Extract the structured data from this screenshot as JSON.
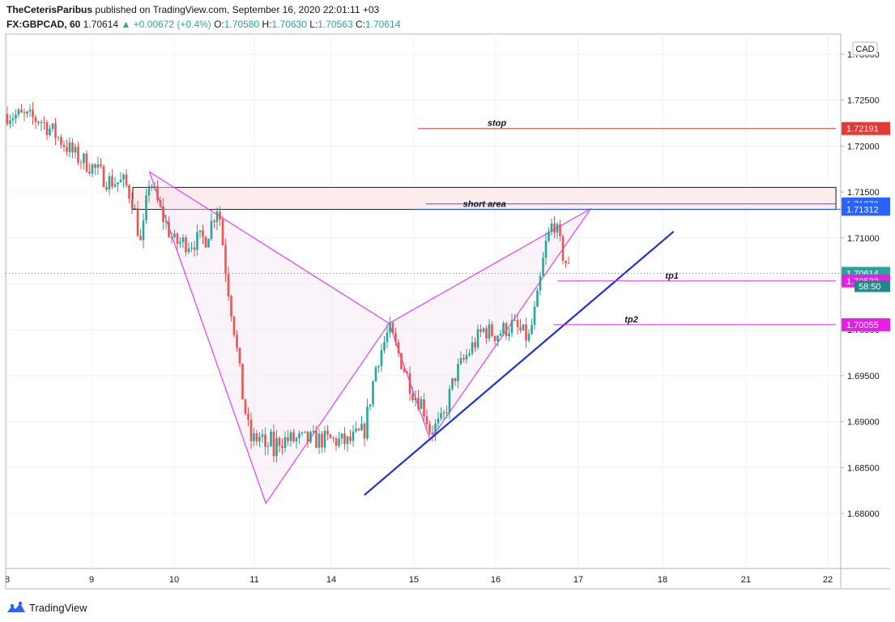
{
  "header": {
    "author": "TheCeterisParibus",
    "published": "published on TradingView.com, September 16, 2020 22:01:11 +03",
    "symbol": "FX:GBPCAD, 60",
    "last": "1.70614",
    "change": "+0.00672 (+0.4%)",
    "o_label": "O:",
    "o": "1.70580",
    "h_label": "H:",
    "h": "1.70630",
    "l_label": "L:",
    "l": "1.70563",
    "c_label": "C:",
    "c": "1.70614"
  },
  "footer": {
    "brand": "TradingView"
  },
  "colors": {
    "up": "#26a69a",
    "down": "#ef5350",
    "grid": "#eef0f3",
    "axis": "#b2b5be",
    "pattern": "#e040fb",
    "trend": "#1e2fe0",
    "stop": "#e53935",
    "zone_border": "#131722",
    "zone_fill": "#fdecec",
    "blue_label": "#2962ff",
    "magenta_label": "#e91ee6",
    "price_label": "#26a69a"
  },
  "chart_data": {
    "type": "candlestick",
    "currency": "CAD",
    "x_ticks": [
      "8",
      "9",
      "10",
      "11",
      "14",
      "15",
      "16",
      "17",
      "18",
      "21",
      "22"
    ],
    "y_ticks": [
      "1.73000",
      "1.72500",
      "1.72000",
      "1.71500",
      "1.71000",
      "1.70500",
      "1.70000",
      "1.69500",
      "1.69000",
      "1.68500",
      "1.68000"
    ],
    "ylim": [
      1.674,
      1.7322
    ],
    "current_price": 1.70614,
    "countdown": "58:50",
    "price_labels": [
      {
        "value": 1.72191,
        "text": "1.72191",
        "color": "#e53935"
      },
      {
        "value": 1.7137,
        "text": "1.71370",
        "color": "#2962ff"
      },
      {
        "value": 1.71312,
        "text": "1.71312",
        "color": "#2962ff"
      },
      {
        "value": 1.70614,
        "text": "1.70614",
        "color": "#26a69a"
      },
      {
        "value": 1.70532,
        "text": "1.70532",
        "color": "#e91ee6"
      },
      {
        "value": 1.70055,
        "text": "1.70055",
        "color": "#e91ee6"
      }
    ],
    "annotations": [
      {
        "text": "stop",
        "x": 15.05,
        "price": 1.72191,
        "x_end": 22.1,
        "label_x": 15.9,
        "color": "#e53935"
      },
      {
        "text": "short area",
        "x": 15.0,
        "price": 1.71312,
        "label_x": 15.6,
        "color": "#2962ff"
      },
      {
        "text": "tp1",
        "x": 16.75,
        "price": 1.70532,
        "x_end": 22.1,
        "label_x": 18.1,
        "color": "#e91ee6"
      },
      {
        "text": "tp2",
        "x": 16.7,
        "price": 1.70055,
        "x_end": 22.1,
        "label_x": 17.55,
        "color": "#e91ee6"
      }
    ],
    "short_zone": {
      "x_start": 9.5,
      "x_end": 22.1,
      "top": 1.7155,
      "bottom": 1.7131
    },
    "blue_line_upper": {
      "x_start": 15.15,
      "x_end": 22.1,
      "price": 1.7137
    },
    "trendline": [
      {
        "x": 14.4,
        "price": 1.682
      },
      {
        "x": 18.4,
        "price": 1.7107
      }
    ],
    "pattern_points": [
      {
        "x": 9.7,
        "price": 1.7172
      },
      {
        "x": 11.45,
        "price": 1.6811
      },
      {
        "x": 14.7,
        "price": 1.7007
      },
      {
        "x": 15.2,
        "price": 1.688
      },
      {
        "x": 17.15,
        "price": 1.7132
      }
    ],
    "candle_path": [
      {
        "x": 8.0,
        "p": 1.7235
      },
      {
        "x": 8.4,
        "p": 1.7228
      },
      {
        "x": 8.6,
        "p": 1.721
      },
      {
        "x": 8.8,
        "p": 1.719
      },
      {
        "x": 9.0,
        "p": 1.7178
      },
      {
        "x": 9.2,
        "p": 1.7162
      },
      {
        "x": 9.4,
        "p": 1.716
      },
      {
        "x": 9.5,
        "p": 1.714
      },
      {
        "x": 9.6,
        "p": 1.709
      },
      {
        "x": 9.7,
        "p": 1.7165
      },
      {
        "x": 9.85,
        "p": 1.7125
      },
      {
        "x": 10.0,
        "p": 1.7095
      },
      {
        "x": 10.2,
        "p": 1.7095
      },
      {
        "x": 10.4,
        "p": 1.71
      },
      {
        "x": 10.55,
        "p": 1.7138
      },
      {
        "x": 10.65,
        "p": 1.706
      },
      {
        "x": 10.75,
        "p": 1.7
      },
      {
        "x": 10.85,
        "p": 1.693
      },
      {
        "x": 10.95,
        "p": 1.688
      },
      {
        "x": 11.1,
        "p": 1.6882
      },
      {
        "x": 11.3,
        "p": 1.6885
      },
      {
        "x": 11.45,
        "p": 1.686
      },
      {
        "x": 11.6,
        "p": 1.6885
      },
      {
        "x": 11.75,
        "p": 1.6865
      },
      {
        "x": 11.9,
        "p": 1.688
      },
      {
        "x": 14.0,
        "p": 1.688
      },
      {
        "x": 14.2,
        "p": 1.6877
      },
      {
        "x": 14.4,
        "p": 1.689
      },
      {
        "x": 14.55,
        "p": 1.6965
      },
      {
        "x": 14.7,
        "p": 1.7
      },
      {
        "x": 14.85,
        "p": 1.6965
      },
      {
        "x": 15.0,
        "p": 1.693
      },
      {
        "x": 15.1,
        "p": 1.692
      },
      {
        "x": 15.2,
        "p": 1.689
      },
      {
        "x": 15.35,
        "p": 1.69
      },
      {
        "x": 15.5,
        "p": 1.695
      },
      {
        "x": 15.7,
        "p": 1.698
      },
      {
        "x": 15.85,
        "p": 1.7
      },
      {
        "x": 16.0,
        "p": 1.6995
      },
      {
        "x": 16.2,
        "p": 1.7005
      },
      {
        "x": 16.4,
        "p": 1.699
      },
      {
        "x": 16.5,
        "p": 1.703
      },
      {
        "x": 16.6,
        "p": 1.709
      },
      {
        "x": 16.7,
        "p": 1.712
      },
      {
        "x": 16.8,
        "p": 1.7085
      },
      {
        "x": 16.9,
        "p": 1.7062
      }
    ]
  }
}
